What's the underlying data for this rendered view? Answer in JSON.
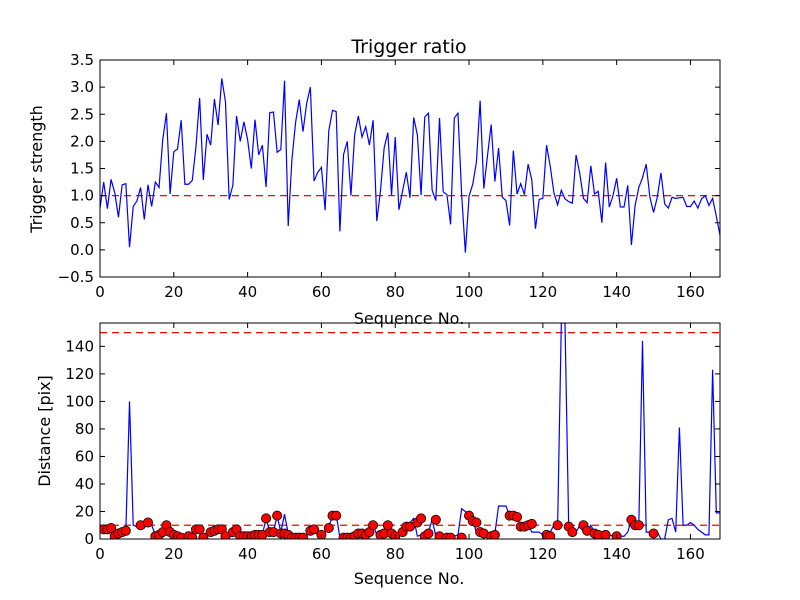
{
  "chart_data": [
    {
      "type": "line",
      "title": "Trigger ratio",
      "xlabel": "Sequence No.",
      "ylabel": "Trigger strength",
      "xlim": [
        0,
        168
      ],
      "ylim": [
        -0.5,
        3.5
      ],
      "xticks": [
        "0",
        "20",
        "40",
        "60",
        "80",
        "100",
        "120",
        "140",
        "160"
      ],
      "yticks": [
        "−0.5",
        "0.0",
        "0.5",
        "1.0",
        "1.5",
        "2.0",
        "2.5",
        "3.0",
        "3.5"
      ],
      "threshold": 1.0,
      "series": [
        {
          "name": "trigger strength",
          "color": "#0000ff",
          "values": [
            0.77,
            1.25,
            0.76,
            1.3,
            1.05,
            0.6,
            1.2,
            1.22,
            0.05,
            0.8,
            0.9,
            1.15,
            0.56,
            1.2,
            0.8,
            1.25,
            1.15,
            2.03,
            2.52,
            1.03,
            1.81,
            1.86,
            2.39,
            1.21,
            1.21,
            1.28,
            1.9,
            2.8,
            1.29,
            2.13,
            1.93,
            2.78,
            2.3,
            3.16,
            2.73,
            0.93,
            1.19,
            2.47,
            2.0,
            2.36,
            2.03,
            1.5,
            2.4,
            1.75,
            1.93,
            1.16,
            2.53,
            2.54,
            1.8,
            1.85,
            3.12,
            0.44,
            1.66,
            2.35,
            2.77,
            2.18,
            2.7,
            3.0,
            1.27,
            1.43,
            1.52,
            0.73,
            2.2,
            2.57,
            2.55,
            0.34,
            1.76,
            2.0,
            1.0,
            2.12,
            2.47,
            2.08,
            2.27,
            1.93,
            2.39,
            0.53,
            1.09,
            1.88,
            2.16,
            1.01,
            2.08,
            0.74,
            1.09,
            1.43,
            0.96,
            2.44,
            2.12,
            1.01,
            2.45,
            2.52,
            1.1,
            0.91,
            2.43,
            1.07,
            1.02,
            0.47,
            2.43,
            2.52,
            1.01,
            -0.05,
            0.99,
            1.21,
            1.62,
            2.75,
            1.13,
            1.74,
            2.31,
            1.26,
            1.88,
            0.97,
            0.91,
            0.45,
            1.83,
            1.03,
            1.22,
            1.02,
            1.58,
            1.29,
            0.39,
            0.93,
            0.95,
            1.93,
            1.54,
            1.05,
            0.83,
            1.1,
            0.94,
            0.89,
            0.86,
            1.75,
            1.41,
            0.95,
            0.87,
            1.55,
            1.03,
            1.08,
            0.5,
            1.61,
            0.79,
            1.0,
            1.32,
            0.79,
            0.79,
            1.19,
            0.09,
            0.82,
            1.15,
            1.33,
            1.58,
            0.97,
            0.69,
            0.97,
            1.42,
            0.85,
            0.77,
            0.97,
            0.95,
            0.96,
            0.97,
            0.8,
            0.8,
            0.9,
            0.77,
            0.94,
            1.0,
            0.82,
            0.95,
            0.62,
            0.27,
            0.86
          ]
        }
      ]
    },
    {
      "type": "line",
      "title": "",
      "xlabel": "Sequence No.",
      "ylabel": "Distance [pix]",
      "xlim": [
        0,
        168
      ],
      "ylim": [
        0,
        157
      ],
      "xticks": [
        "0",
        "20",
        "40",
        "60",
        "80",
        "100",
        "120",
        "140",
        "160"
      ],
      "yticks": [
        "0",
        "20",
        "40",
        "60",
        "80",
        "100",
        "120",
        "140"
      ],
      "thresholds": [
        10,
        150
      ],
      "series": [
        {
          "name": "distance",
          "color": "#0000ff",
          "values": [
            7,
            8,
            8,
            7,
            2,
            5,
            6,
            5,
            100,
            10,
            9,
            9,
            8,
            12,
            10,
            3,
            3,
            4,
            6,
            10,
            4,
            3,
            2,
            3,
            2,
            3,
            8,
            7,
            2,
            5,
            6,
            7,
            7,
            8,
            3,
            2,
            2,
            7,
            3,
            3,
            3,
            3,
            3,
            3,
            3,
            15,
            5,
            5,
            17,
            5,
            18,
            4,
            3,
            2,
            2,
            2,
            2,
            7,
            7,
            3,
            5,
            5,
            9,
            17,
            18,
            1,
            1,
            1,
            2,
            4,
            4,
            3,
            3,
            6,
            10,
            3,
            4,
            6,
            10,
            4,
            2,
            5,
            9,
            9,
            12,
            15,
            2,
            3,
            5,
            5,
            14,
            2,
            3,
            3,
            2,
            2,
            2,
            3,
            22,
            20,
            17,
            13,
            5,
            5,
            5,
            3,
            3,
            4,
            24,
            24,
            24,
            17,
            15,
            16,
            9,
            10,
            11,
            5,
            5,
            5,
            3,
            2,
            5,
            10,
            10,
            157,
            157,
            9,
            5,
            5,
            10,
            5,
            5,
            10,
            5,
            5,
            5,
            3,
            3,
            2,
            5,
            2,
            2,
            5,
            14,
            10,
            10,
            144,
            5,
            5,
            5,
            5,
            0,
            0,
            14,
            15,
            5,
            81,
            10,
            10,
            12,
            10,
            7,
            5,
            3,
            3,
            123,
            19,
            19
          ],
          "markers": [
            [
              1,
              7
            ],
            [
              2,
              7
            ],
            [
              3,
              8
            ],
            [
              4,
              2
            ],
            [
              5,
              4
            ],
            [
              6,
              5
            ],
            [
              7,
              6
            ],
            [
              11,
              10
            ],
            [
              13,
              12
            ],
            [
              15,
              2
            ],
            [
              16,
              3
            ],
            [
              17,
              5
            ],
            [
              18,
              10
            ],
            [
              19,
              5
            ],
            [
              20,
              3
            ],
            [
              21,
              2
            ],
            [
              22,
              1
            ],
            [
              24,
              2
            ],
            [
              25,
              1
            ],
            [
              26,
              7
            ],
            [
              27,
              7
            ],
            [
              28,
              1
            ],
            [
              30,
              5
            ],
            [
              31,
              6
            ],
            [
              32,
              7
            ],
            [
              33,
              7
            ],
            [
              34,
              2
            ],
            [
              36,
              5
            ],
            [
              37,
              7
            ],
            [
              38,
              2
            ],
            [
              39,
              2
            ],
            [
              40,
              2
            ],
            [
              41,
              2
            ],
            [
              42,
              3
            ],
            [
              43,
              3
            ],
            [
              44,
              3
            ],
            [
              45,
              15
            ],
            [
              46,
              5
            ],
            [
              47,
              5
            ],
            [
              48,
              17
            ],
            [
              49,
              4
            ],
            [
              50,
              4
            ],
            [
              51,
              3
            ],
            [
              52,
              1
            ],
            [
              53,
              1
            ],
            [
              54,
              1
            ],
            [
              55,
              1
            ],
            [
              57,
              6
            ],
            [
              58,
              7
            ],
            [
              60,
              3
            ],
            [
              62,
              8
            ],
            [
              63,
              17
            ],
            [
              64,
              17
            ],
            [
              66,
              1
            ],
            [
              67,
              1
            ],
            [
              68,
              1
            ],
            [
              69,
              2
            ],
            [
              70,
              4
            ],
            [
              71,
              4
            ],
            [
              72,
              3
            ],
            [
              73,
              5
            ],
            [
              74,
              10
            ],
            [
              76,
              3
            ],
            [
              77,
              4
            ],
            [
              78,
              10
            ],
            [
              79,
              4
            ],
            [
              80,
              2
            ],
            [
              82,
              5
            ],
            [
              83,
              9
            ],
            [
              84,
              9
            ],
            [
              86,
              12
            ],
            [
              87,
              15
            ],
            [
              88,
              2
            ],
            [
              89,
              4
            ],
            [
              91,
              14
            ],
            [
              92,
              2
            ],
            [
              94,
              1
            ],
            [
              95,
              1
            ],
            [
              98,
              1
            ],
            [
              100,
              17
            ],
            [
              101,
              13
            ],
            [
              102,
              12
            ],
            [
              103,
              5
            ],
            [
              104,
              4
            ],
            [
              106,
              2
            ],
            [
              107,
              3
            ],
            [
              111,
              17
            ],
            [
              112,
              17
            ],
            [
              113,
              16
            ],
            [
              114,
              9
            ],
            [
              115,
              9
            ],
            [
              116,
              10
            ],
            [
              117,
              11
            ],
            [
              121,
              3
            ],
            [
              122,
              2
            ],
            [
              124,
              10
            ],
            [
              127,
              9
            ],
            [
              128,
              5
            ],
            [
              131,
              10
            ],
            [
              132,
              6
            ],
            [
              134,
              4
            ],
            [
              135,
              3
            ],
            [
              137,
              3
            ],
            [
              140,
              2
            ],
            [
              144,
              14
            ],
            [
              145,
              10
            ],
            [
              146,
              10
            ],
            [
              150,
              4
            ]
          ]
        }
      ]
    }
  ]
}
